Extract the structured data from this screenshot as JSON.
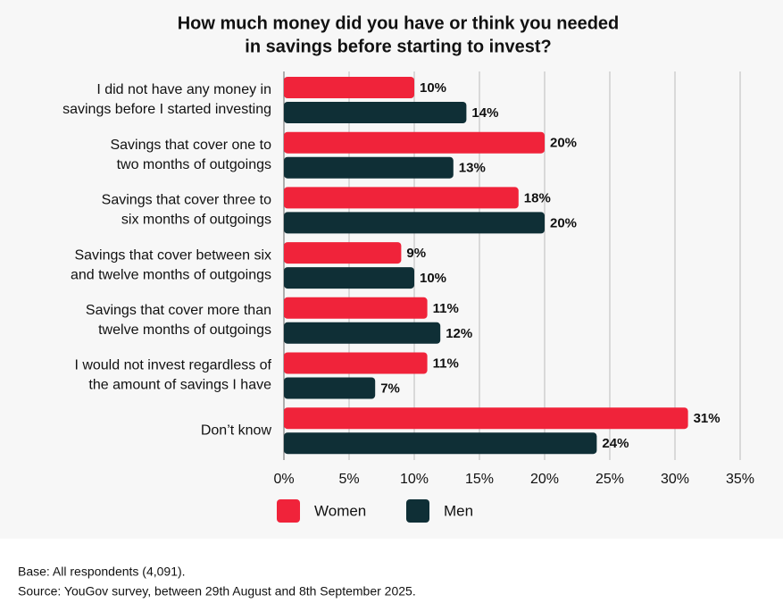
{
  "chart_data": {
    "type": "bar",
    "orientation": "horizontal",
    "title": [
      "How much money did you have or think you needed",
      "in savings before starting to invest?"
    ],
    "categories": [
      [
        "I did not have any money in",
        "savings before I started investing"
      ],
      [
        "Savings that cover one to",
        "two months of outgoings"
      ],
      [
        "Savings that cover three to",
        "six months of outgoings"
      ],
      [
        "Savings that cover between six",
        "and twelve months of outgoings"
      ],
      [
        "Savings that cover more than",
        "twelve months of outgoings"
      ],
      [
        "I would not invest regardless of",
        "the amount of savings I have"
      ],
      [
        "Don’t know"
      ]
    ],
    "series": [
      {
        "name": "Women",
        "color": "#f0233a",
        "values": [
          10,
          20,
          18,
          9,
          11,
          11,
          31
        ],
        "value_labels": [
          "10%",
          "20%",
          "18%",
          "9%",
          "11%",
          "11%",
          "31%"
        ]
      },
      {
        "name": "Men",
        "color": "#0f2f36",
        "values": [
          14,
          13,
          20,
          10,
          12,
          7,
          24
        ],
        "value_labels": [
          "14%",
          "13%",
          "20%",
          "10%",
          "12%",
          "7%",
          "24%"
        ]
      }
    ],
    "xlim": [
      0,
      35
    ],
    "xticks": [
      {
        "value": 0,
        "label": "0%"
      },
      {
        "value": 5,
        "label": "5%"
      },
      {
        "value": 10,
        "label": "10%"
      },
      {
        "value": 15,
        "label": "15%"
      },
      {
        "value": 20,
        "label": "20%"
      },
      {
        "value": 25,
        "label": "25%"
      },
      {
        "value": 30,
        "label": "30%"
      },
      {
        "value": 35,
        "label": "35%"
      }
    ],
    "grid": true,
    "legend": "bottom"
  },
  "footer": [
    "Base: All respondents (4,091).",
    "Source: YouGov survey, between 29th August and 8th September 2025."
  ]
}
